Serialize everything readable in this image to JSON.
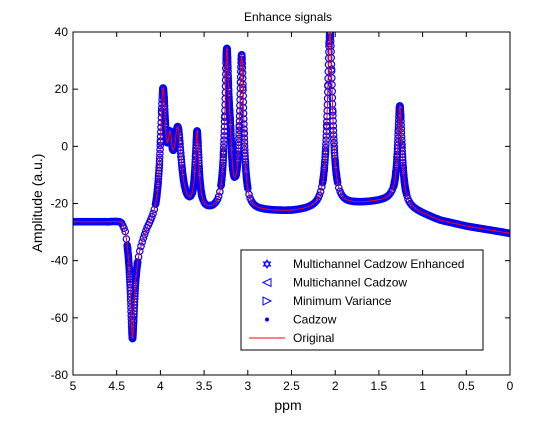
{
  "chart_data": {
    "type": "line",
    "title": "Enhance signals",
    "xlabel": "ppm",
    "ylabel": "Amplitude (a.u.)",
    "xlim": [
      5,
      0
    ],
    "ylim": [
      -80,
      40
    ],
    "x_reversed": true,
    "xticks": [
      5,
      4.5,
      4,
      3.5,
      3,
      2.5,
      2,
      1.5,
      1,
      0.5,
      0
    ],
    "yticks": [
      40,
      20,
      0,
      -20,
      -40,
      -60,
      -80
    ],
    "xtick_labels": [
      "5",
      "4.5",
      "4",
      "3.5",
      "3",
      "2.5",
      "2",
      "1.5",
      "1",
      "0.5",
      "0"
    ],
    "ytick_labels": [
      "40",
      "20",
      "0",
      "-20",
      "-40",
      "-60",
      "-80"
    ],
    "grid": false,
    "legend_position": "bottom-right",
    "colors": {
      "markers": "#0000ff",
      "original": "#ff0000",
      "axes": "#000000"
    },
    "series": [
      {
        "name": "Multichannel Cadzow Enhanced",
        "marker": "hexagram"
      },
      {
        "name": "Multichannel Cadzow",
        "marker": "triangle-left"
      },
      {
        "name": "Minimum Variance",
        "marker": "triangle-right"
      },
      {
        "name": "Cadzow",
        "marker": "point"
      },
      {
        "name": "Original",
        "marker": "line"
      }
    ],
    "baseline": {
      "x": [
        5,
        4.6,
        4.45,
        4.4,
        4.35,
        4.3,
        4.2,
        4.15,
        4.1,
        4.05,
        4.0,
        3.3,
        2.8,
        2.5,
        2.3,
        2.15,
        1.8,
        1.5,
        1.35,
        1.15,
        0.8,
        0.5,
        0.2,
        0
      ],
      "y": [
        -26.5,
        -26.5,
        -26.0,
        -28.0,
        -35.0,
        -40.0,
        -33.0,
        -30.0,
        -28.5,
        -27.5,
        -25.0,
        -23.5,
        -23.0,
        -23.0,
        -22.5,
        -22.0,
        -20.5,
        -19.5,
        -19.0,
        -22.0,
        -26.0,
        -28.0,
        -29.5,
        -30.5
      ]
    },
    "peaks": [
      {
        "x": 4.32,
        "y": -68,
        "width": 0.025
      },
      {
        "x": 3.97,
        "y": 16,
        "width": 0.035
      },
      {
        "x": 3.89,
        "y": -8,
        "width": 0.03
      },
      {
        "x": 3.8,
        "y": 3,
        "width": 0.05
      },
      {
        "x": 3.58,
        "y": 3,
        "width": 0.025
      },
      {
        "x": 3.24,
        "y": 30,
        "width": 0.028
      },
      {
        "x": 3.2,
        "y": -12,
        "width": 0.02
      },
      {
        "x": 3.07,
        "y": 30,
        "width": 0.028
      },
      {
        "x": 2.06,
        "y": 40,
        "width": 0.035
      },
      {
        "x": 1.26,
        "y": 14,
        "width": 0.03
      }
    ]
  }
}
